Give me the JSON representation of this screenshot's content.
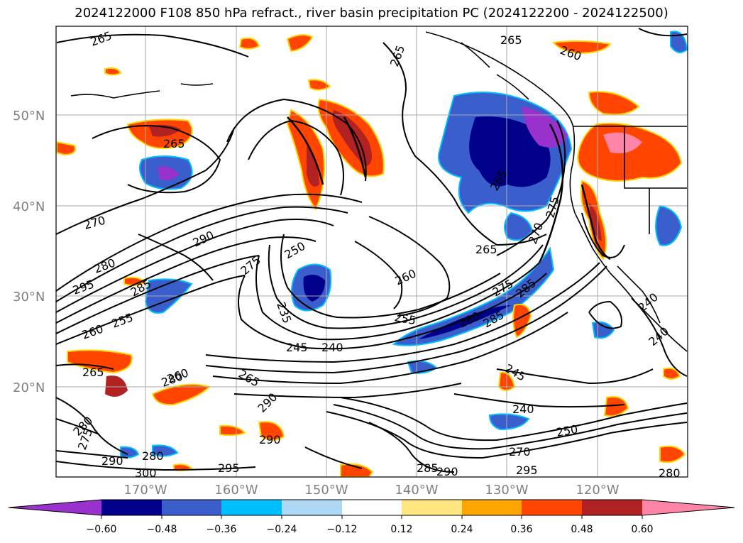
{
  "title": "2024122000 F108 850 hPa refract., river basin precipitation PC (2024122200 - 2024122500)",
  "lat_labels": [
    "50°N",
    "40°N",
    "30°N",
    "20°N"
  ],
  "lon_labels": [
    "170°W",
    "160°W",
    "150°W",
    "140°W",
    "130°W",
    "120°W"
  ],
  "colorbar": {
    "ticks": [
      "−0.60",
      "−0.48",
      "−0.36",
      "−0.24",
      "−0.12",
      "0.12",
      "0.24",
      "0.36",
      "0.48",
      "0.60"
    ],
    "colors": [
      "#9932cc",
      "#00008b",
      "#3a5fcd",
      "#00bfff",
      "#add8f6",
      "#ffffff",
      "#ffe680",
      "#ffa500",
      "#ff4500",
      "#b22222",
      "#ff85a8"
    ]
  },
  "contour_labels": [
    "265",
    "265",
    "265",
    "260",
    "265",
    "270",
    "290",
    "280",
    "295",
    "285",
    "275",
    "250",
    "235",
    "245",
    "240",
    "255",
    "260",
    "265",
    "280",
    "285",
    "275",
    "285",
    "270",
    "275",
    "265",
    "260",
    "255",
    "265",
    "245",
    "240",
    "250",
    "270",
    "295",
    "285",
    "290",
    "290",
    "280",
    "290",
    "280",
    "275",
    "300",
    "295",
    "265",
    "240",
    "240",
    "280",
    "260",
    "280",
    "290"
  ],
  "colors": {
    "coast": "#000000",
    "grid": "#aaaaaa",
    "contour": "#000000"
  }
}
